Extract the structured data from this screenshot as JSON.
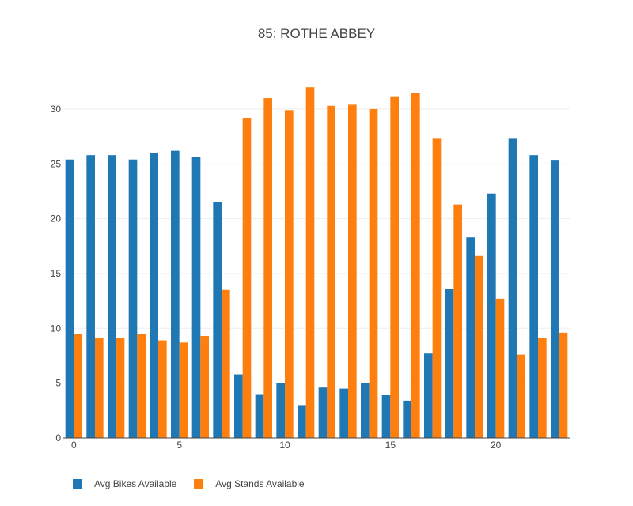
{
  "chart_data": {
    "type": "bar",
    "title": "85: ROTHE ABBEY",
    "xlabel": "",
    "ylabel": "",
    "x": [
      0,
      1,
      2,
      3,
      4,
      5,
      6,
      7,
      8,
      9,
      10,
      11,
      12,
      13,
      14,
      15,
      16,
      17,
      18,
      19,
      20,
      21,
      22,
      23
    ],
    "x_ticks": [
      0,
      5,
      10,
      15,
      20
    ],
    "y_ticks": [
      0,
      5,
      10,
      15,
      20,
      25,
      30
    ],
    "ylim": [
      0,
      33.6
    ],
    "grid": true,
    "legend_position": "bottom-left",
    "series": [
      {
        "name": "Avg Bikes Available",
        "color": "#1f77b4",
        "values": [
          25.4,
          25.8,
          25.8,
          25.4,
          26.0,
          26.2,
          25.6,
          21.5,
          5.8,
          4.0,
          5.0,
          3.0,
          4.6,
          4.5,
          5.0,
          3.9,
          3.4,
          7.7,
          13.6,
          18.3,
          22.3,
          27.3,
          25.8,
          25.3
        ]
      },
      {
        "name": "Avg Stands Available",
        "color": "#ff7f0e",
        "values": [
          9.5,
          9.1,
          9.1,
          9.5,
          8.9,
          8.7,
          9.3,
          13.5,
          29.2,
          31.0,
          29.9,
          32.0,
          30.3,
          30.4,
          30.0,
          31.1,
          31.5,
          27.3,
          21.3,
          16.6,
          12.7,
          7.6,
          9.1,
          9.6
        ]
      }
    ]
  }
}
